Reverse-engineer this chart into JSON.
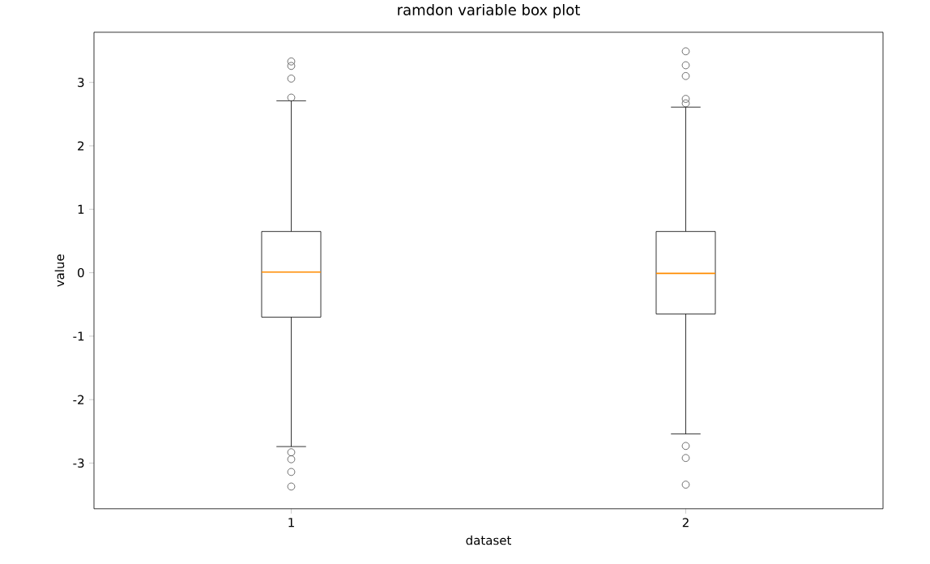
{
  "chart_data": {
    "type": "box",
    "title": "ramdon variable box plot",
    "xlabel": "dataset",
    "ylabel": "value",
    "categories": [
      "1",
      "2"
    ],
    "boxes": [
      {
        "low": -2.74,
        "q1": -0.7,
        "median": 0.01,
        "q3": 0.65,
        "high": 2.71,
        "outliers": [
          3.33,
          3.26,
          3.06,
          2.76,
          -2.83,
          -2.94,
          -3.14,
          -3.37
        ]
      },
      {
        "low": -2.54,
        "q1": -0.65,
        "median": -0.01,
        "q3": 0.65,
        "high": 2.61,
        "outliers": [
          3.49,
          3.27,
          3.1,
          2.74,
          2.67,
          -2.73,
          -2.92,
          -3.34
        ]
      }
    ],
    "ylim": [
      -3.72,
      3.79
    ],
    "yticks": [
      -3,
      -2,
      -1,
      0,
      1,
      2,
      3
    ],
    "marker": "circle"
  }
}
